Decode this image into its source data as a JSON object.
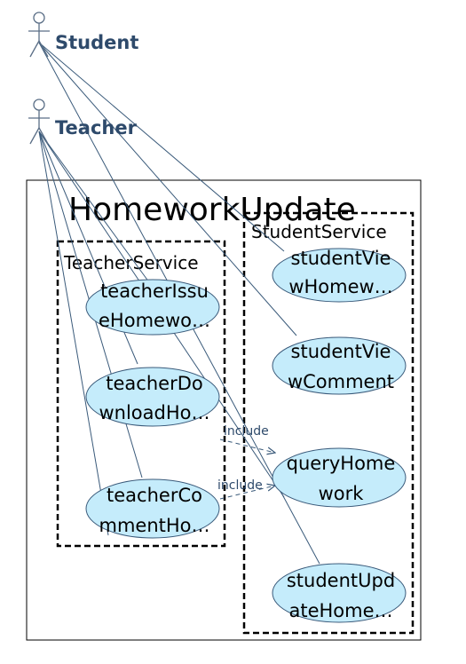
{
  "actors": {
    "student": {
      "name": "Student"
    },
    "teacher": {
      "name": "Teacher"
    }
  },
  "system": {
    "name": "HomeworkUpdate"
  },
  "packages": {
    "teacher_service": {
      "name": "TeacherService"
    },
    "student_service": {
      "name": "StudentService"
    }
  },
  "use_cases": {
    "teacher_issue": {
      "line1": "teacherIssu",
      "line2": "eHomewo…"
    },
    "teacher_download": {
      "line1": "teacherDo",
      "line2": "wnloadHo…"
    },
    "teacher_comment": {
      "line1": "teacherCo",
      "line2": "mmentHo…"
    },
    "student_view_homework": {
      "line1": "studentVie",
      "line2": "wHomew…"
    },
    "student_view_comment": {
      "line1": "studentVie",
      "line2": "wComment"
    },
    "query_homework": {
      "line1": "queryHome",
      "line2": "work"
    },
    "student_update": {
      "line1": "studentUpd",
      "line2": "ateHome…"
    }
  },
  "relations": {
    "include_1": "include",
    "include_2": "include"
  },
  "colors": {
    "use_case_fill": "#c5ecfb",
    "line": "#3a5a7a",
    "actor_text": "#2e4a6b"
  }
}
